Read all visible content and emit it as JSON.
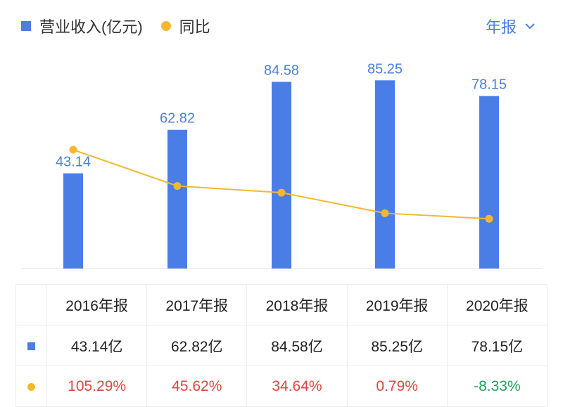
{
  "legend": {
    "revenue_label": "营业收入(亿元)",
    "yoy_label": "同比"
  },
  "period_selector": "年报",
  "colors": {
    "bar": "#4a7ee6",
    "line": "#f5b730",
    "positive": "#e0473e",
    "negative": "#27a05a"
  },
  "chart_data": {
    "type": "bar",
    "categories": [
      "2016年报",
      "2017年报",
      "2018年报",
      "2019年报",
      "2020年报"
    ],
    "series": [
      {
        "name": "营业收入(亿元)",
        "type": "bar",
        "values": [
          43.14,
          62.82,
          84.58,
          85.25,
          78.15
        ]
      },
      {
        "name": "同比",
        "type": "line",
        "unit": "%",
        "values": [
          105.29,
          45.62,
          34.64,
          0.79,
          -8.33
        ]
      }
    ],
    "bar_labels": [
      "43.14",
      "62.82",
      "84.58",
      "85.25",
      "78.15"
    ]
  },
  "table": {
    "headers": [
      "2016年报",
      "2017年报",
      "2018年报",
      "2019年报",
      "2020年报"
    ],
    "revenue": [
      "43.14亿",
      "62.82亿",
      "84.58亿",
      "85.25亿",
      "78.15亿"
    ],
    "yoy": [
      "105.29%",
      "45.62%",
      "34.64%",
      "0.79%",
      "-8.33%"
    ]
  }
}
